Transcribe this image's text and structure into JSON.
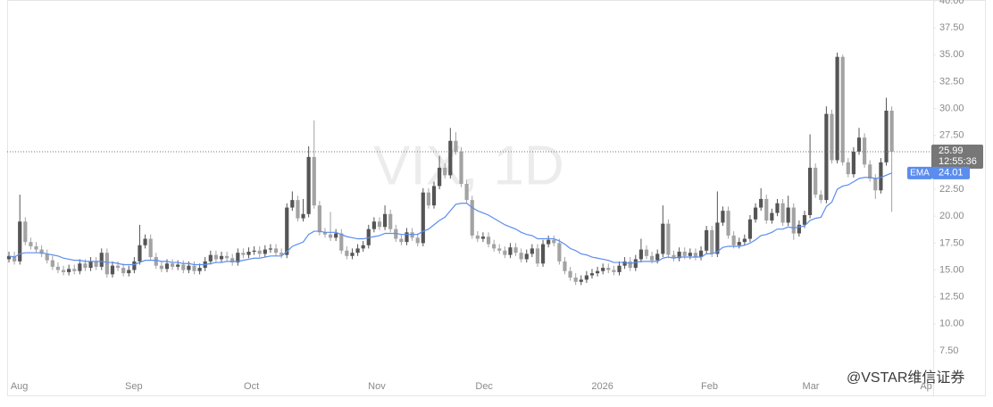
{
  "chart_data": {
    "type": "candlestick",
    "title": "VIX, 1D",
    "watermark": "@VSTAR维信证券",
    "countdown": "12:55:36",
    "up_color": "#555555",
    "down_color": "#a3a3a3",
    "grid": false,
    "ylim": [
      3.35,
      40
    ],
    "yticks": [
      {
        "value": 7.5,
        "label": "7.50"
      },
      {
        "value": 10,
        "label": "10.00"
      },
      {
        "value": 12.5,
        "label": "12.50"
      },
      {
        "value": 15,
        "label": "15.00"
      },
      {
        "value": 17.5,
        "label": "17.50"
      },
      {
        "value": 20,
        "label": "20.00"
      },
      {
        "value": 22.5,
        "label": "22.50"
      },
      {
        "value": 25,
        "label": "25.00"
      },
      {
        "value": 27.5,
        "label": "27.50"
      },
      {
        "value": 30,
        "label": "30.00"
      },
      {
        "value": 32.5,
        "label": "32.50"
      },
      {
        "value": 35,
        "label": "35.00"
      },
      {
        "value": 37.5,
        "label": "37.50"
      },
      {
        "value": 40,
        "label": "40.00"
      }
    ],
    "xlim": [
      -0.33,
      169.6
    ],
    "xticks": [
      {
        "value": 0.3,
        "label": "Aug"
      },
      {
        "value": 21.3,
        "label": "Sep"
      },
      {
        "value": 43.1,
        "label": "Oct"
      },
      {
        "value": 65.9,
        "label": "Nov"
      },
      {
        "value": 85.6,
        "label": "Dec"
      },
      {
        "value": 106.9,
        "label": "2026"
      },
      {
        "value": 127.0,
        "label": "Feb"
      },
      {
        "value": 145.6,
        "label": "Mar"
      },
      {
        "value": 167.2,
        "label": "Ap"
      }
    ],
    "open": [
      16.0,
      16.3,
      15.8,
      19.5,
      17.6,
      17.2,
      16.9,
      16.5,
      15.9,
      15.3,
      15.0,
      14.8,
      15.1,
      14.9,
      15.6,
      15.2,
      15.8,
      15.3,
      16.6,
      14.6,
      15.4,
      15.2,
      14.7,
      15.0,
      15.8,
      17.3,
      17.9,
      16.2,
      15.4,
      15.1,
      15.6,
      15.3,
      15.5,
      15.0,
      15.4,
      14.9,
      15.2,
      15.8,
      16.4,
      16.0,
      16.3,
      16.1,
      15.7,
      16.6,
      16.4,
      16.7,
      16.8,
      16.5,
      16.9,
      17.0,
      16.6,
      16.4,
      20.8,
      21.5,
      19.8,
      20.2,
      25.5,
      21.0,
      18.5,
      18.3,
      18.0,
      18.4,
      16.8,
      16.3,
      16.6,
      17.0,
      17.3,
      18.8,
      19.5,
      19.0,
      20.2,
      18.8,
      17.9,
      17.6,
      18.5,
      18.0,
      17.5,
      22.2,
      21.0,
      22.8,
      24.5,
      23.8,
      27.0,
      26.0,
      23.0,
      21.5,
      18.2,
      17.9,
      18.1,
      17.4,
      17.0,
      16.8,
      16.4,
      17.1,
      16.6,
      16.0,
      16.5,
      17.0,
      15.6,
      17.4,
      17.8,
      17.5,
      15.8,
      14.9,
      14.3,
      13.9,
      14.1,
      14.5,
      14.7,
      14.9,
      15.2,
      15.0,
      14.8,
      15.4,
      15.8,
      15.2,
      16.0,
      16.9,
      16.3,
      15.9,
      16.5,
      19.3,
      16.4,
      16.1,
      16.7,
      16.3,
      16.6,
      16.2,
      16.8,
      18.7,
      16.5,
      19.4,
      20.5,
      18.2,
      17.3,
      17.6,
      17.9,
      19.7,
      20.8,
      21.6,
      19.6,
      20.3,
      21.2,
      19.4,
      20.8,
      18.4,
      19.2,
      20.1,
      24.5,
      22.0,
      21.5,
      29.5,
      25.2,
      34.8,
      25.0,
      23.9,
      26.0,
      27.3,
      24.8,
      23.5,
      22.4,
      25.0,
      29.8
    ],
    "high": [
      16.7,
      16.7,
      22.0,
      19.9,
      18.0,
      17.6,
      17.3,
      16.9,
      16.3,
      15.7,
      15.4,
      15.5,
      15.5,
      16.0,
      16.0,
      16.2,
      16.2,
      17.0,
      17.0,
      15.8,
      15.8,
      15.6,
      15.4,
      16.2,
      19.2,
      18.3,
      18.3,
      16.6,
      15.8,
      16.0,
      16.0,
      15.9,
      15.9,
      15.8,
      15.8,
      15.6,
      16.2,
      16.8,
      16.8,
      16.7,
      16.7,
      16.5,
      17.0,
      17.0,
      17.1,
      17.2,
      17.2,
      17.3,
      17.4,
      17.4,
      17.0,
      21.2,
      22.3,
      21.9,
      21.6,
      26.5,
      28.9,
      21.4,
      18.9,
      20.4,
      18.8,
      18.8,
      17.2,
      17.0,
      17.4,
      17.7,
      19.2,
      19.9,
      19.9,
      21.0,
      20.6,
      19.2,
      18.3,
      18.9,
      18.9,
      18.4,
      22.6,
      22.6,
      23.2,
      25.6,
      24.9,
      28.2,
      27.8,
      26.4,
      23.4,
      21.9,
      18.6,
      18.5,
      18.5,
      17.8,
      17.4,
      17.2,
      17.5,
      17.5,
      17.0,
      16.9,
      17.4,
      17.4,
      17.8,
      18.2,
      18.2,
      17.9,
      16.2,
      15.3,
      14.7,
      14.5,
      14.9,
      15.1,
      15.3,
      15.6,
      15.6,
      15.4,
      15.8,
      16.2,
      16.2,
      16.4,
      17.9,
      17.3,
      16.7,
      16.9,
      21.0,
      19.7,
      16.8,
      17.1,
      17.1,
      17.0,
      17.0,
      17.2,
      19.1,
      19.1,
      22.3,
      20.9,
      20.9,
      18.6,
      18.0,
      18.3,
      20.1,
      21.2,
      22.6,
      22.0,
      20.7,
      21.6,
      21.6,
      21.9,
      21.2,
      19.6,
      20.5,
      27.6,
      24.9,
      22.4,
      30.2,
      29.9,
      35.2,
      35.0,
      25.4,
      26.4,
      28.2,
      27.7,
      25.2,
      23.9,
      25.4,
      31.0,
      30.2
    ],
    "low": [
      15.7,
      15.5,
      15.5,
      17.3,
      16.9,
      16.6,
      16.2,
      15.6,
      15.0,
      14.7,
      14.5,
      14.5,
      14.6,
      14.6,
      14.9,
      14.9,
      15.0,
      15.0,
      14.3,
      14.3,
      14.9,
      14.4,
      14.4,
      14.7,
      15.5,
      17.0,
      15.9,
      15.1,
      14.8,
      14.8,
      15.0,
      15.0,
      14.7,
      14.7,
      14.6,
      14.6,
      14.9,
      15.5,
      15.7,
      15.7,
      15.8,
      15.4,
      15.4,
      16.1,
      16.1,
      16.4,
      16.2,
      16.2,
      16.6,
      16.3,
      16.1,
      16.1,
      20.5,
      19.5,
      19.5,
      19.9,
      20.7,
      18.2,
      18.0,
      17.7,
      17.7,
      16.5,
      16.0,
      16.0,
      16.3,
      16.7,
      17.0,
      18.5,
      18.7,
      18.7,
      18.5,
      17.6,
      17.3,
      17.3,
      17.7,
      17.2,
      17.2,
      20.7,
      20.7,
      22.5,
      23.5,
      23.5,
      25.7,
      22.7,
      21.2,
      17.9,
      17.6,
      17.6,
      17.1,
      16.7,
      16.5,
      16.1,
      16.1,
      16.3,
      15.7,
      15.7,
      16.2,
      15.3,
      15.3,
      17.1,
      17.2,
      15.5,
      14.6,
      14.0,
      13.6,
      13.6,
      13.8,
      14.2,
      14.4,
      14.6,
      14.7,
      14.5,
      14.5,
      15.1,
      14.9,
      14.9,
      15.7,
      16.0,
      15.6,
      15.6,
      16.2,
      16.1,
      15.8,
      15.8,
      16.0,
      16.0,
      15.9,
      15.9,
      16.5,
      16.2,
      16.2,
      19.1,
      17.9,
      17.0,
      17.0,
      17.3,
      17.6,
      19.4,
      20.5,
      19.3,
      19.3,
      20.0,
      19.1,
      19.1,
      17.8,
      18.1,
      18.9,
      19.8,
      21.7,
      21.2,
      21.2,
      24.9,
      24.9,
      24.7,
      23.6,
      23.6,
      25.7,
      24.5,
      23.2,
      21.6,
      22.1,
      24.7,
      20.4
    ],
    "close": [
      16.3,
      15.8,
      19.5,
      17.6,
      17.2,
      16.9,
      16.5,
      15.9,
      15.3,
      15.0,
      14.8,
      15.1,
      14.9,
      15.6,
      15.2,
      15.8,
      15.3,
      16.6,
      14.6,
      15.4,
      15.2,
      14.7,
      15.0,
      15.8,
      17.3,
      17.9,
      16.2,
      15.4,
      15.1,
      15.6,
      15.3,
      15.5,
      15.0,
      15.4,
      14.9,
      15.2,
      15.8,
      16.4,
      16.0,
      16.3,
      16.1,
      15.7,
      16.6,
      16.4,
      16.7,
      16.8,
      16.5,
      16.9,
      17.0,
      16.6,
      16.4,
      20.8,
      21.5,
      19.8,
      20.2,
      25.5,
      21.0,
      18.5,
      18.3,
      18.0,
      18.4,
      16.8,
      16.3,
      16.6,
      17.0,
      17.3,
      18.8,
      19.5,
      19.0,
      20.2,
      18.8,
      17.9,
      17.6,
      18.5,
      18.0,
      17.5,
      22.2,
      21.0,
      22.8,
      24.5,
      23.8,
      27.0,
      26.0,
      23.0,
      21.5,
      18.2,
      17.9,
      18.1,
      17.4,
      17.0,
      16.8,
      16.4,
      17.1,
      16.6,
      16.0,
      16.5,
      17.0,
      15.6,
      17.4,
      17.8,
      17.5,
      15.8,
      14.9,
      14.3,
      13.9,
      14.1,
      14.5,
      14.7,
      14.9,
      15.2,
      15.0,
      14.8,
      15.4,
      15.8,
      15.2,
      16.0,
      16.9,
      16.3,
      15.9,
      16.5,
      19.3,
      16.4,
      16.1,
      16.7,
      16.3,
      16.6,
      16.2,
      16.8,
      18.7,
      16.5,
      19.4,
      20.5,
      18.2,
      17.3,
      17.6,
      17.9,
      19.7,
      20.8,
      21.6,
      19.6,
      20.3,
      21.2,
      19.4,
      20.8,
      18.4,
      19.2,
      20.1,
      24.5,
      22.0,
      21.5,
      29.5,
      25.2,
      34.8,
      25.0,
      23.9,
      26.0,
      27.3,
      24.8,
      23.5,
      22.4,
      25.0,
      29.8,
      25.99
    ],
    "overlays": [
      {
        "name": "EMA",
        "color": "#5b8def",
        "values": [
          16.3,
          16.2,
          16.5,
          16.6,
          16.6,
          16.6,
          16.6,
          16.5,
          16.4,
          16.3,
          16.1,
          16.0,
          15.9,
          15.9,
          15.8,
          15.8,
          15.8,
          15.8,
          15.7,
          15.7,
          15.6,
          15.5,
          15.5,
          15.5,
          15.7,
          15.9,
          15.9,
          15.9,
          15.8,
          15.8,
          15.7,
          15.7,
          15.6,
          15.6,
          15.5,
          15.5,
          15.5,
          15.6,
          15.7,
          15.7,
          15.8,
          15.8,
          15.8,
          15.9,
          16.0,
          16.1,
          16.1,
          16.2,
          16.3,
          16.3,
          16.3,
          16.7,
          17.2,
          17.4,
          17.6,
          18.3,
          18.6,
          18.6,
          18.5,
          18.5,
          18.5,
          18.3,
          18.1,
          18.0,
          17.9,
          17.9,
          18.0,
          18.1,
          18.2,
          18.4,
          18.4,
          18.4,
          18.3,
          18.3,
          18.3,
          18.3,
          18.6,
          18.8,
          19.2,
          19.6,
          19.9,
          20.5,
          21.1,
          21.2,
          21.2,
          20.8,
          20.5,
          20.3,
          20.1,
          19.8,
          19.5,
          19.2,
          19.0,
          18.8,
          18.5,
          18.3,
          18.2,
          17.9,
          17.9,
          17.9,
          17.9,
          17.7,
          17.4,
          17.0,
          16.8,
          16.5,
          16.4,
          16.2,
          16.1,
          16.0,
          15.9,
          15.7,
          15.7,
          15.7,
          15.6,
          15.7,
          15.8,
          15.8,
          15.8,
          15.8,
          16.1,
          16.2,
          16.1,
          16.2,
          16.2,
          16.2,
          16.2,
          16.2,
          16.5,
          16.5,
          16.7,
          17.1,
          17.2,
          17.2,
          17.2,
          17.3,
          17.5,
          17.8,
          18.2,
          18.3,
          18.5,
          18.8,
          18.8,
          19.0,
          18.9,
          19.0,
          19.1,
          19.6,
          19.8,
          19.9,
          20.9,
          21.3,
          22.5,
          22.8,
          22.9,
          23.2,
          23.5,
          23.6,
          23.6,
          23.5,
          23.6,
          23.8,
          24.01
        ]
      }
    ]
  }
}
